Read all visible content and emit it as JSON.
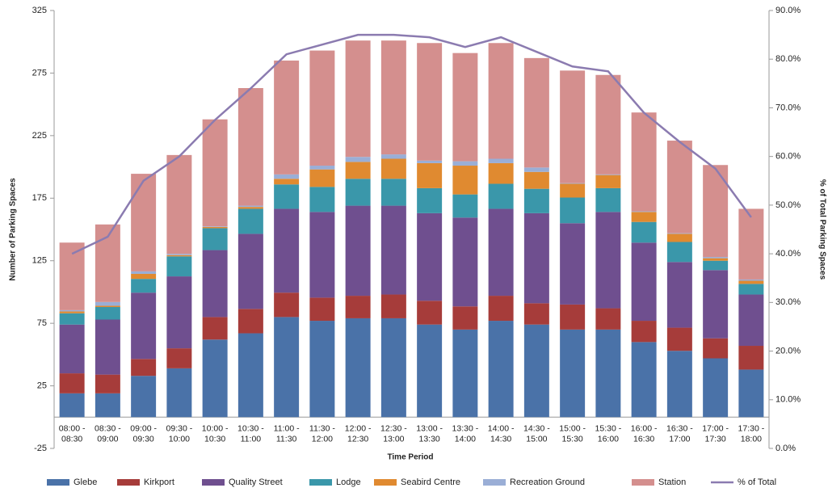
{
  "chart_data": {
    "type": "bar",
    "stacked": true,
    "categories": [
      [
        "08:00 -",
        "08:30"
      ],
      [
        "08:30 -",
        "09:00"
      ],
      [
        "09:00 -",
        "09:30"
      ],
      [
        "09:30 -",
        "10:00"
      ],
      [
        "10:00 -",
        "10:30"
      ],
      [
        "10:30 -",
        "11:00"
      ],
      [
        "11:00 -",
        "11:30"
      ],
      [
        "11:30 -",
        "12:00"
      ],
      [
        "12:00 -",
        "12:30"
      ],
      [
        "12:30 -",
        "13:00"
      ],
      [
        "13:00 -",
        "13:30"
      ],
      [
        "13:30 -",
        "14:00"
      ],
      [
        "14:00 -",
        "14:30"
      ],
      [
        "14:30 -",
        "15:00"
      ],
      [
        "15:00 -",
        "15:30"
      ],
      [
        "15:30 -",
        "16:00"
      ],
      [
        "16:00 -",
        "16:30"
      ],
      [
        "16:30 -",
        "17:00"
      ],
      [
        "17:00 -",
        "17:30"
      ],
      [
        "17:30 -",
        "18:00"
      ]
    ],
    "x_label": "Time Period",
    "y_label": "Number of Parking Spaces",
    "y2_label": "% of Total Parking Spaces",
    "ylim": [
      -25,
      325
    ],
    "yticks": [
      -25,
      25,
      75,
      125,
      175,
      225,
      275,
      325
    ],
    "y2lim": [
      0,
      90
    ],
    "y2ticks": [
      {
        "value": 0,
        "label": "0.0%"
      },
      {
        "value": 10,
        "label": "10.0%"
      },
      {
        "value": 20,
        "label": "20.0%"
      },
      {
        "value": 30,
        "label": "30.0%"
      },
      {
        "value": 40,
        "label": "40.0%"
      },
      {
        "value": 50,
        "label": "50.0%"
      },
      {
        "value": 60,
        "label": "60.0%"
      },
      {
        "value": 70,
        "label": "70.0%"
      },
      {
        "value": 80,
        "label": "80.0%"
      },
      {
        "value": 90,
        "label": "90.0%"
      }
    ],
    "legend": "bottom",
    "series": [
      {
        "name": "Glebe",
        "color": "#4a72a8",
        "values": [
          19,
          19,
          33,
          39,
          62,
          67,
          80,
          77,
          79,
          79,
          74,
          70,
          77,
          74,
          70,
          70,
          60,
          53,
          47,
          38
        ]
      },
      {
        "name": "Kirkport",
        "color": "#a63c3a",
        "values": [
          16,
          15,
          13.5,
          16,
          18,
          19.5,
          19.5,
          18.5,
          18,
          19,
          19,
          18.5,
          20,
          17,
          20,
          17,
          17,
          18.5,
          16,
          19
        ]
      },
      {
        "name": "Quality Street",
        "color": "#6f4f8f",
        "values": [
          39,
          44,
          53,
          57.5,
          53.5,
          60,
          67,
          68.5,
          72,
          71,
          70,
          71,
          69.5,
          72,
          65,
          77,
          62.5,
          52.5,
          54.5,
          41
        ]
      },
      {
        "name": "Lodge",
        "color": "#3a97aa",
        "values": [
          9,
          10,
          11,
          16,
          17.5,
          20,
          19.5,
          20,
          21.5,
          21.5,
          20,
          18.5,
          20,
          19.5,
          20.5,
          19,
          16.5,
          16,
          7.5,
          8.5
        ]
      },
      {
        "name": "Seabird Centre",
        "color": "#e08a30",
        "values": [
          1.5,
          1,
          4,
          1,
          1,
          1.5,
          4.5,
          14,
          13.5,
          16,
          20,
          23,
          16.5,
          13.5,
          11,
          10.5,
          8,
          6.5,
          2,
          2.5
        ]
      },
      {
        "name": "Recreation Ground",
        "color": "#9aaed6",
        "values": [
          1,
          3,
          2,
          1,
          0.5,
          1,
          3.5,
          3,
          4,
          3.5,
          2,
          3.5,
          3.5,
          3.5,
          0.5,
          0.5,
          0.5,
          0.5,
          1,
          1
        ]
      },
      {
        "name": "Station",
        "color": "#d48f8e",
        "values": [
          54,
          62,
          78,
          79,
          85.5,
          94,
          91,
          92,
          93,
          91,
          94,
          86.5,
          92.5,
          87.5,
          90,
          79.5,
          79,
          74,
          73.5,
          56.5
        ]
      },
      {
        "name": "% of Total",
        "color": "#8b7bb0",
        "type": "line",
        "axis": "y2",
        "values": [
          40,
          43.5,
          55,
          60,
          67.5,
          74,
          81,
          83,
          85,
          85,
          84.5,
          82.5,
          84.5,
          81.5,
          78.5,
          77.5,
          69,
          63,
          57.5,
          47.5
        ]
      }
    ]
  }
}
